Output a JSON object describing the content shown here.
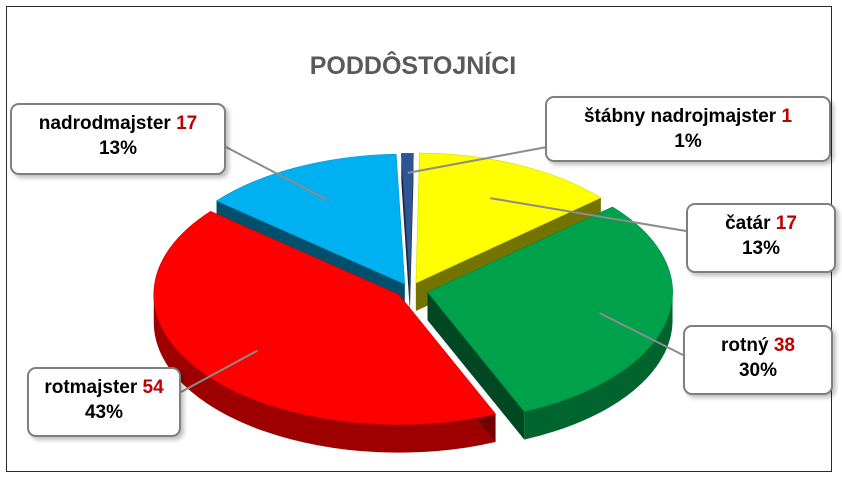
{
  "chart_data": {
    "type": "pie",
    "title": "PODDÔSTOJNÍCI",
    "slices": [
      {
        "label": "štábny nadrojmajster",
        "value": 1,
        "percent": "1%",
        "color": "#2f5597"
      },
      {
        "label": "čatár",
        "value": 17,
        "percent": "13%",
        "color": "#ffff00"
      },
      {
        "label": "rotný",
        "value": 38,
        "percent": "30%",
        "color": "#00a14b"
      },
      {
        "label": "rotmajster",
        "value": 54,
        "percent": "43%",
        "color": "#ff0000"
      },
      {
        "label": "nadrodmajster",
        "value": 17,
        "percent": "13%",
        "color": "#00b0f0"
      }
    ],
    "style": "3d-exploded",
    "label_value_color": "#c00000"
  }
}
